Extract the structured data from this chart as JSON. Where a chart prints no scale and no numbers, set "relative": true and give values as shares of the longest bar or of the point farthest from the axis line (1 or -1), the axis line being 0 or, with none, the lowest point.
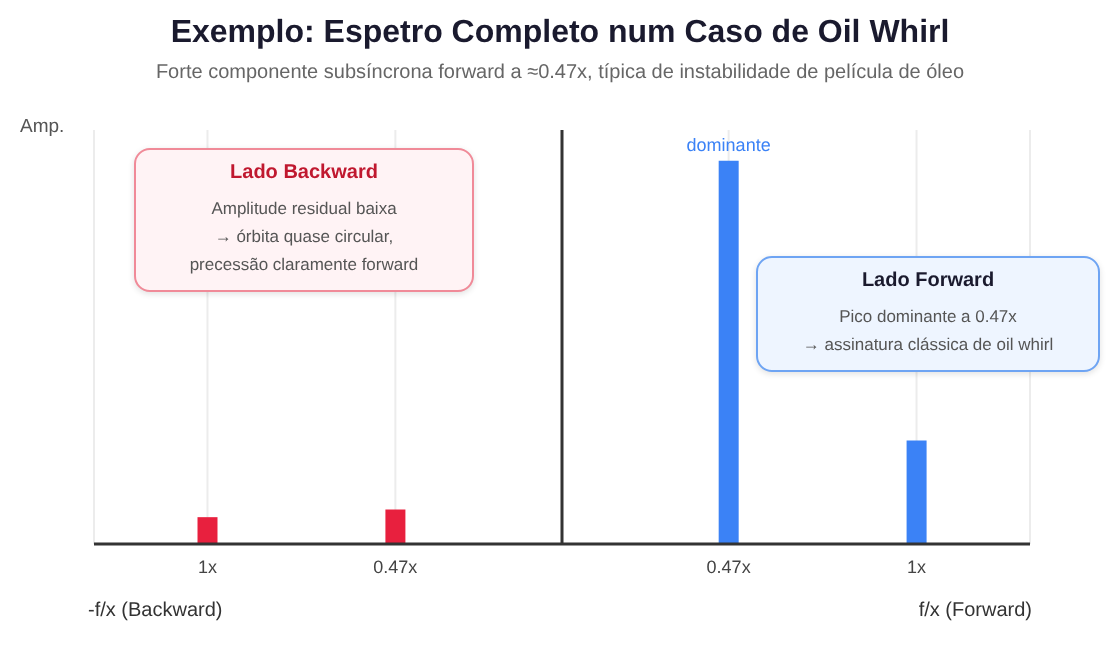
{
  "chart_data": {
    "type": "bar",
    "title": "Exemplo: Espetro Completo num Caso de Oil Whirl",
    "subtitle": "Forte componente subsíncrona forward a ≈0.47x, típica de instabilidade de película de óleo",
    "ylabel": "Amp.",
    "relative": true,
    "x": [
      -1,
      -0.47,
      0.47,
      1
    ],
    "values": [
      0.07,
      0.09,
      1,
      0.27
    ],
    "colors": [
      "#e8203e",
      "#e8203e",
      "#3b82f6",
      "#3b82f6"
    ],
    "xlim": [
      -1.32,
      1.32
    ],
    "xticks": [
      {
        "value": -1,
        "label": "1x"
      },
      {
        "value": -0.47,
        "label": "0.47x"
      },
      {
        "value": 0.47,
        "label": "0.47x"
      },
      {
        "value": 1,
        "label": "1x"
      }
    ],
    "grid": "x",
    "ref_lines": [
      {
        "axis": "x",
        "value": 0,
        "color": "#333333"
      }
    ],
    "annotations": [
      {
        "text": "dominante",
        "x": 0.47,
        "y": 1
      },
      "-f/x (Backward)",
      "f/x (Forward)",
      "Lado Backward",
      "Amplitude residual baixa\n→ órbita quase circular,\nprecessão claramente forward",
      "Lado Forward",
      "Pico dominante a 0.47x\n→ assinatura clássica de oil whirl"
    ]
  }
}
